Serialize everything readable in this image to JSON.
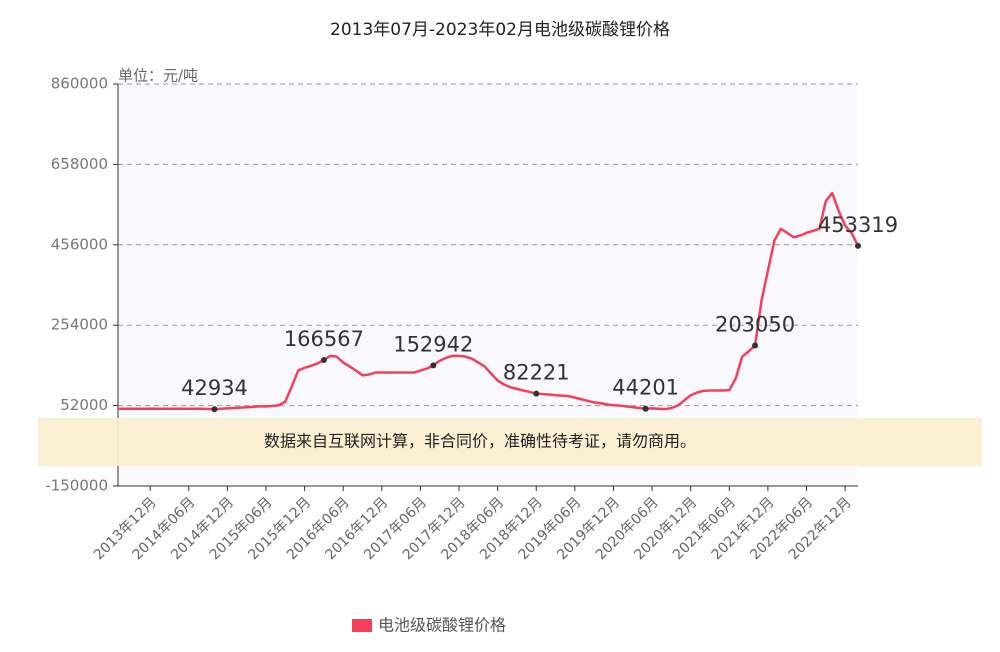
{
  "chart_data": {
    "type": "line",
    "title": "2013年07月-2023年02月电池级碳酸锂价格",
    "y_label": "单位：元/吨",
    "note": "数据来自互联网计算，非合同价，准确性待考证，请勿商用。",
    "categories": [
      null,
      null,
      null,
      null,
      null,
      "2013年12月",
      null,
      null,
      null,
      null,
      null,
      "2014年06月",
      null,
      null,
      null,
      null,
      null,
      "2014年12月",
      null,
      null,
      null,
      null,
      null,
      "2015年06月",
      null,
      null,
      null,
      null,
      null,
      "2015年12月",
      null,
      null,
      null,
      null,
      null,
      "2016年06月",
      null,
      null,
      null,
      null,
      null,
      "2016年12月",
      null,
      null,
      null,
      null,
      null,
      "2017年06月",
      null,
      null,
      null,
      null,
      null,
      "2017年12月",
      null,
      null,
      null,
      null,
      null,
      "2018年06月",
      null,
      null,
      null,
      null,
      null,
      "2018年12月",
      null,
      null,
      null,
      null,
      null,
      "2019年06月",
      null,
      null,
      null,
      null,
      null,
      "2019年12月",
      null,
      null,
      null,
      null,
      null,
      "2020年06月",
      null,
      null,
      null,
      null,
      null,
      "2020年12月",
      null,
      null,
      null,
      null,
      null,
      "2021年06月",
      null,
      null,
      null,
      null,
      null,
      "2021年12月",
      null,
      null,
      null,
      null,
      null,
      "2022年06月",
      null,
      null,
      null,
      null,
      null,
      "2022年12月",
      null,
      null
    ],
    "series": [
      {
        "name": "电池级碳酸锂价格",
        "color": "#f2405a",
        "values": [
          44000,
          44000,
          44000,
          44000,
          44000,
          44000,
          44000,
          44000,
          44000,
          44000,
          44000,
          44000,
          44000,
          44000,
          43500,
          42934,
          44000,
          45000,
          46000,
          47000,
          48000,
          49000,
          50000,
          50000,
          51000,
          53000,
          62000,
          100000,
          140000,
          147000,
          152000,
          158000,
          166567,
          177000,
          175000,
          160000,
          150000,
          140000,
          128000,
          130000,
          135000,
          135000,
          135000,
          135000,
          135000,
          135000,
          135000,
          140000,
          145000,
          152942,
          165000,
          172000,
          177000,
          177000,
          175000,
          170000,
          160000,
          150000,
          132000,
          115000,
          105000,
          98000,
          94000,
          90000,
          86000,
          82221,
          81000,
          80000,
          78000,
          77000,
          76000,
          72000,
          68000,
          64000,
          60000,
          58000,
          55000,
          53000,
          52000,
          50000,
          48000,
          46000,
          44201,
          45000,
          44000,
          43000,
          46000,
          52000,
          65000,
          78000,
          85000,
          89000,
          90000,
          90000,
          90000,
          91000,
          120000,
          175000,
          188000,
          203050,
          315000,
          391000,
          466000,
          496000,
          486000,
          475000,
          479000,
          486000,
          491000,
          496000,
          566000,
          586000,
          541000,
          504000,
          486000,
          453319
        ],
        "value_labels": [
          null,
          null,
          null,
          null,
          null,
          null,
          null,
          null,
          null,
          null,
          null,
          null,
          null,
          null,
          null,
          "42934",
          null,
          null,
          null,
          null,
          null,
          null,
          null,
          null,
          null,
          null,
          null,
          null,
          null,
          null,
          null,
          null,
          "166567",
          null,
          null,
          null,
          null,
          null,
          null,
          null,
          null,
          null,
          null,
          null,
          null,
          null,
          null,
          null,
          null,
          "152942",
          null,
          null,
          null,
          null,
          null,
          null,
          null,
          null,
          null,
          null,
          null,
          null,
          null,
          null,
          null,
          "82221",
          null,
          null,
          null,
          null,
          null,
          null,
          null,
          null,
          null,
          null,
          null,
          null,
          null,
          null,
          null,
          null,
          "44201",
          null,
          null,
          null,
          null,
          null,
          null,
          null,
          null,
          null,
          null,
          null,
          null,
          null,
          null,
          null,
          null,
          "203050",
          null,
          null,
          null,
          null,
          null,
          null,
          null,
          null,
          null,
          null,
          null,
          null,
          null,
          null,
          null,
          "453319"
        ]
      }
    ],
    "ylim": [
      -150000,
      860000
    ],
    "yticks": [
      -150000,
      52000,
      254000,
      456000,
      658000,
      860000
    ],
    "grid": true
  }
}
